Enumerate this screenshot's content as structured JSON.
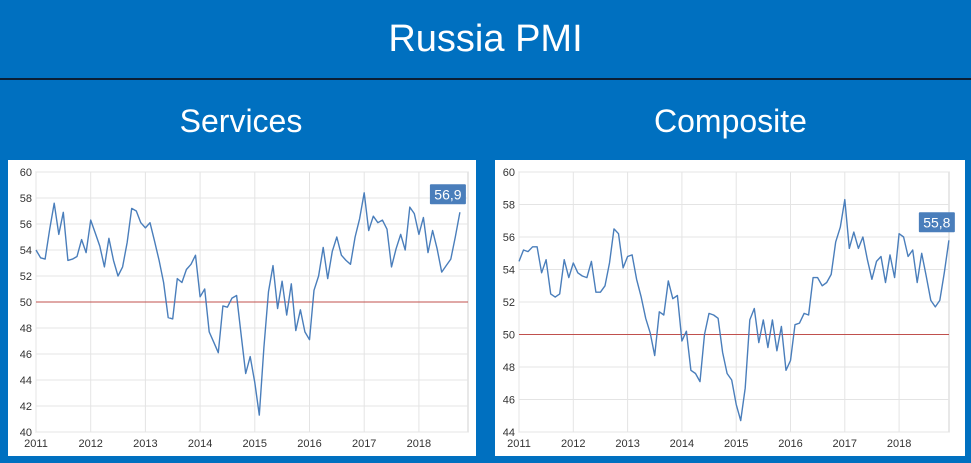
{
  "header": {
    "title": "Russia PMI"
  },
  "chart_data": [
    {
      "type": "line",
      "title": "Services",
      "ylim": [
        40,
        60
      ],
      "yticks": [
        40,
        42,
        44,
        46,
        48,
        50,
        52,
        54,
        56,
        58,
        60
      ],
      "xticks": [
        "2011",
        "2012",
        "2013",
        "2014",
        "2015",
        "2016",
        "2017",
        "2018"
      ],
      "reference_line": 50,
      "last_value_label": "56,9",
      "grid": true,
      "colors": {
        "line": "#4a7ebb",
        "reference": "#c0504d",
        "label_bg": "#4a7ebb"
      },
      "series": [
        {
          "x_start": 2011.0,
          "x_step": 0.08333,
          "values": [
            54.0,
            53.4,
            53.3,
            55.6,
            57.6,
            55.2,
            56.9,
            53.2,
            53.3,
            53.5,
            54.8,
            53.8,
            56.3,
            55.3,
            54.3,
            52.7,
            54.9,
            53.2,
            52.0,
            52.7,
            54.6,
            57.2,
            57.0,
            56.1,
            55.7,
            56.1,
            54.7,
            53.2,
            51.5,
            48.8,
            48.7,
            51.8,
            51.5,
            52.5,
            52.9,
            53.6,
            50.4,
            51.0,
            47.7,
            46.9,
            46.1,
            49.7,
            49.6,
            50.3,
            50.5,
            47.5,
            44.5,
            45.8,
            43.8,
            41.3,
            46.5,
            50.8,
            52.8,
            49.5,
            51.6,
            49.0,
            51.4,
            47.8,
            49.4,
            47.7,
            47.1,
            50.9,
            52.0,
            54.2,
            51.8,
            53.9,
            55.0,
            53.6,
            53.2,
            52.9,
            55.0,
            56.4,
            58.4,
            55.5,
            56.6,
            56.1,
            56.3,
            55.6,
            52.7,
            54.1,
            55.2,
            54.0,
            57.3,
            56.8,
            55.2,
            56.5,
            53.8,
            55.5,
            54.1,
            52.3,
            52.8,
            53.3,
            55.0,
            56.9
          ]
        }
      ]
    },
    {
      "type": "line",
      "title": "Composite",
      "ylim": [
        44,
        60
      ],
      "yticks": [
        44,
        46,
        48,
        50,
        52,
        54,
        56,
        58,
        60
      ],
      "xticks": [
        "2011",
        "2012",
        "2013",
        "2014",
        "2015",
        "2016",
        "2017",
        "2018"
      ],
      "reference_line": 50,
      "last_value_label": "55,8",
      "grid": true,
      "colors": {
        "line": "#4a7ebb",
        "reference": "#c0504d",
        "label_bg": "#4a7ebb"
      },
      "series": [
        {
          "x_start": 2011.0,
          "x_step": 0.08333,
          "values": [
            54.5,
            55.2,
            55.1,
            55.4,
            55.4,
            53.8,
            54.6,
            52.5,
            52.3,
            52.5,
            54.6,
            53.5,
            54.4,
            53.8,
            53.6,
            53.5,
            54.5,
            52.6,
            52.6,
            53.0,
            54.4,
            56.5,
            56.2,
            54.1,
            54.8,
            54.9,
            53.4,
            52.3,
            51.0,
            50.1,
            48.7,
            51.4,
            51.2,
            53.3,
            52.2,
            52.4,
            49.6,
            50.2,
            47.8,
            47.6,
            47.1,
            50.0,
            51.3,
            51.2,
            51.0,
            48.9,
            47.6,
            47.2,
            45.7,
            44.7,
            46.7,
            50.9,
            51.6,
            49.5,
            50.9,
            49.2,
            50.9,
            49.0,
            50.5,
            47.8,
            48.4,
            50.6,
            50.7,
            51.3,
            51.2,
            53.5,
            53.5,
            53.0,
            53.2,
            53.7,
            55.7,
            56.6,
            58.3,
            55.3,
            56.3,
            55.3,
            56.0,
            54.6,
            53.4,
            54.5,
            54.8,
            53.2,
            54.9,
            53.5,
            56.2,
            56.0,
            54.8,
            55.2,
            53.2,
            55.0,
            53.6,
            52.1,
            51.7,
            52.1,
            53.8,
            55.8
          ]
        }
      ]
    }
  ]
}
